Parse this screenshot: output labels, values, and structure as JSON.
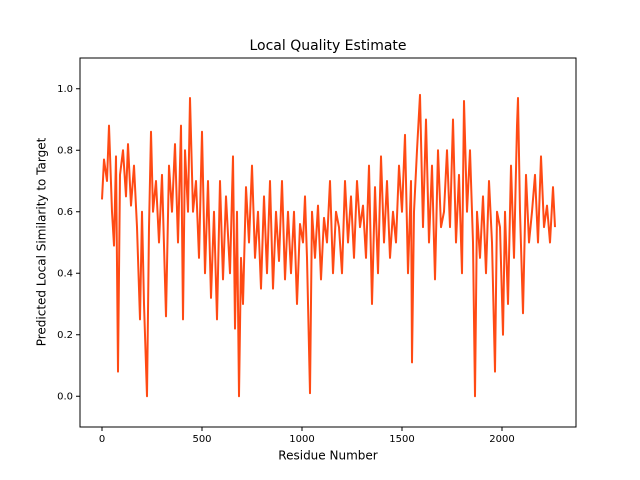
{
  "chart_data": {
    "type": "line",
    "title": "Local Quality Estimate",
    "x_label": "Residue Number",
    "y_label": "Predicted Local Similarity to Target",
    "xlim": [
      -110,
      2370
    ],
    "ylim": [
      -0.1,
      1.1
    ],
    "xticks": [
      0,
      500,
      1000,
      1500,
      2000
    ],
    "yticks": [
      {
        "value": 0,
        "label": "0.0"
      },
      0.2,
      0.4,
      0.6,
      0.8,
      {
        "value": 1,
        "label": "1.0"
      }
    ],
    "series": [
      {
        "color": "#ff4a14",
        "x": [
          0,
          10,
          25,
          35,
          50,
          60,
          70,
          80,
          90,
          105,
          120,
          130,
          145,
          160,
          175,
          190,
          200,
          210,
          220,
          225,
          235,
          245,
          255,
          270,
          285,
          300,
          320,
          335,
          350,
          365,
          380,
          395,
          405,
          415,
          430,
          440,
          455,
          470,
          485,
          500,
          515,
          530,
          545,
          560,
          575,
          590,
          605,
          620,
          640,
          655,
          665,
          675,
          685,
          695,
          705,
          720,
          735,
          750,
          765,
          780,
          795,
          810,
          825,
          840,
          855,
          870,
          885,
          900,
          915,
          930,
          945,
          960,
          975,
          990,
          1005,
          1015,
          1025,
          1040,
          1050,
          1065,
          1080,
          1095,
          1110,
          1125,
          1140,
          1155,
          1170,
          1185,
          1200,
          1215,
          1230,
          1245,
          1260,
          1275,
          1290,
          1305,
          1320,
          1335,
          1350,
          1365,
          1380,
          1395,
          1410,
          1425,
          1440,
          1455,
          1470,
          1485,
          1500,
          1515,
          1530,
          1545,
          1550,
          1560,
          1575,
          1590,
          1605,
          1620,
          1635,
          1650,
          1665,
          1680,
          1695,
          1710,
          1725,
          1740,
          1755,
          1770,
          1785,
          1800,
          1810,
          1825,
          1840,
          1855,
          1865,
          1875,
          1890,
          1905,
          1920,
          1935,
          1950,
          1965,
          1975,
          1990,
          2005,
          2015,
          2030,
          2045,
          2060,
          2075,
          2080,
          2090,
          2105,
          2120,
          2135,
          2150,
          2165,
          2180,
          2195,
          2210,
          2225,
          2240,
          2255,
          2265
        ],
        "values": [
          0.64,
          0.77,
          0.7,
          0.88,
          0.6,
          0.49,
          0.78,
          0.08,
          0.72,
          0.8,
          0.65,
          0.82,
          0.62,
          0.75,
          0.55,
          0.25,
          0.6,
          0.3,
          0.1,
          0.0,
          0.55,
          0.86,
          0.6,
          0.7,
          0.5,
          0.72,
          0.26,
          0.75,
          0.6,
          0.82,
          0.5,
          0.88,
          0.25,
          0.8,
          0.6,
          0.97,
          0.6,
          0.7,
          0.45,
          0.86,
          0.4,
          0.7,
          0.32,
          0.6,
          0.25,
          0.7,
          0.38,
          0.65,
          0.4,
          0.78,
          0.22,
          0.6,
          0.0,
          0.45,
          0.3,
          0.68,
          0.5,
          0.75,
          0.45,
          0.6,
          0.35,
          0.65,
          0.4,
          0.7,
          0.35,
          0.6,
          0.44,
          0.7,
          0.38,
          0.6,
          0.4,
          0.6,
          0.3,
          0.56,
          0.5,
          0.65,
          0.45,
          0.01,
          0.6,
          0.45,
          0.62,
          0.38,
          0.58,
          0.5,
          0.7,
          0.4,
          0.6,
          0.55,
          0.4,
          0.7,
          0.5,
          0.65,
          0.45,
          0.7,
          0.55,
          0.62,
          0.45,
          0.75,
          0.3,
          0.68,
          0.4,
          0.78,
          0.5,
          0.7,
          0.45,
          0.6,
          0.5,
          0.75,
          0.6,
          0.85,
          0.4,
          0.7,
          0.11,
          0.6,
          0.8,
          0.98,
          0.55,
          0.9,
          0.5,
          0.75,
          0.38,
          0.8,
          0.55,
          0.6,
          0.8,
          0.55,
          0.9,
          0.5,
          0.72,
          0.4,
          0.96,
          0.6,
          0.8,
          0.5,
          0.0,
          0.6,
          0.45,
          0.65,
          0.4,
          0.7,
          0.5,
          0.08,
          0.6,
          0.55,
          0.2,
          0.6,
          0.3,
          0.75,
          0.45,
          0.88,
          0.97,
          0.6,
          0.27,
          0.72,
          0.5,
          0.6,
          0.72,
          0.5,
          0.78,
          0.55,
          0.62,
          0.5,
          0.68,
          0.55
        ]
      }
    ]
  }
}
